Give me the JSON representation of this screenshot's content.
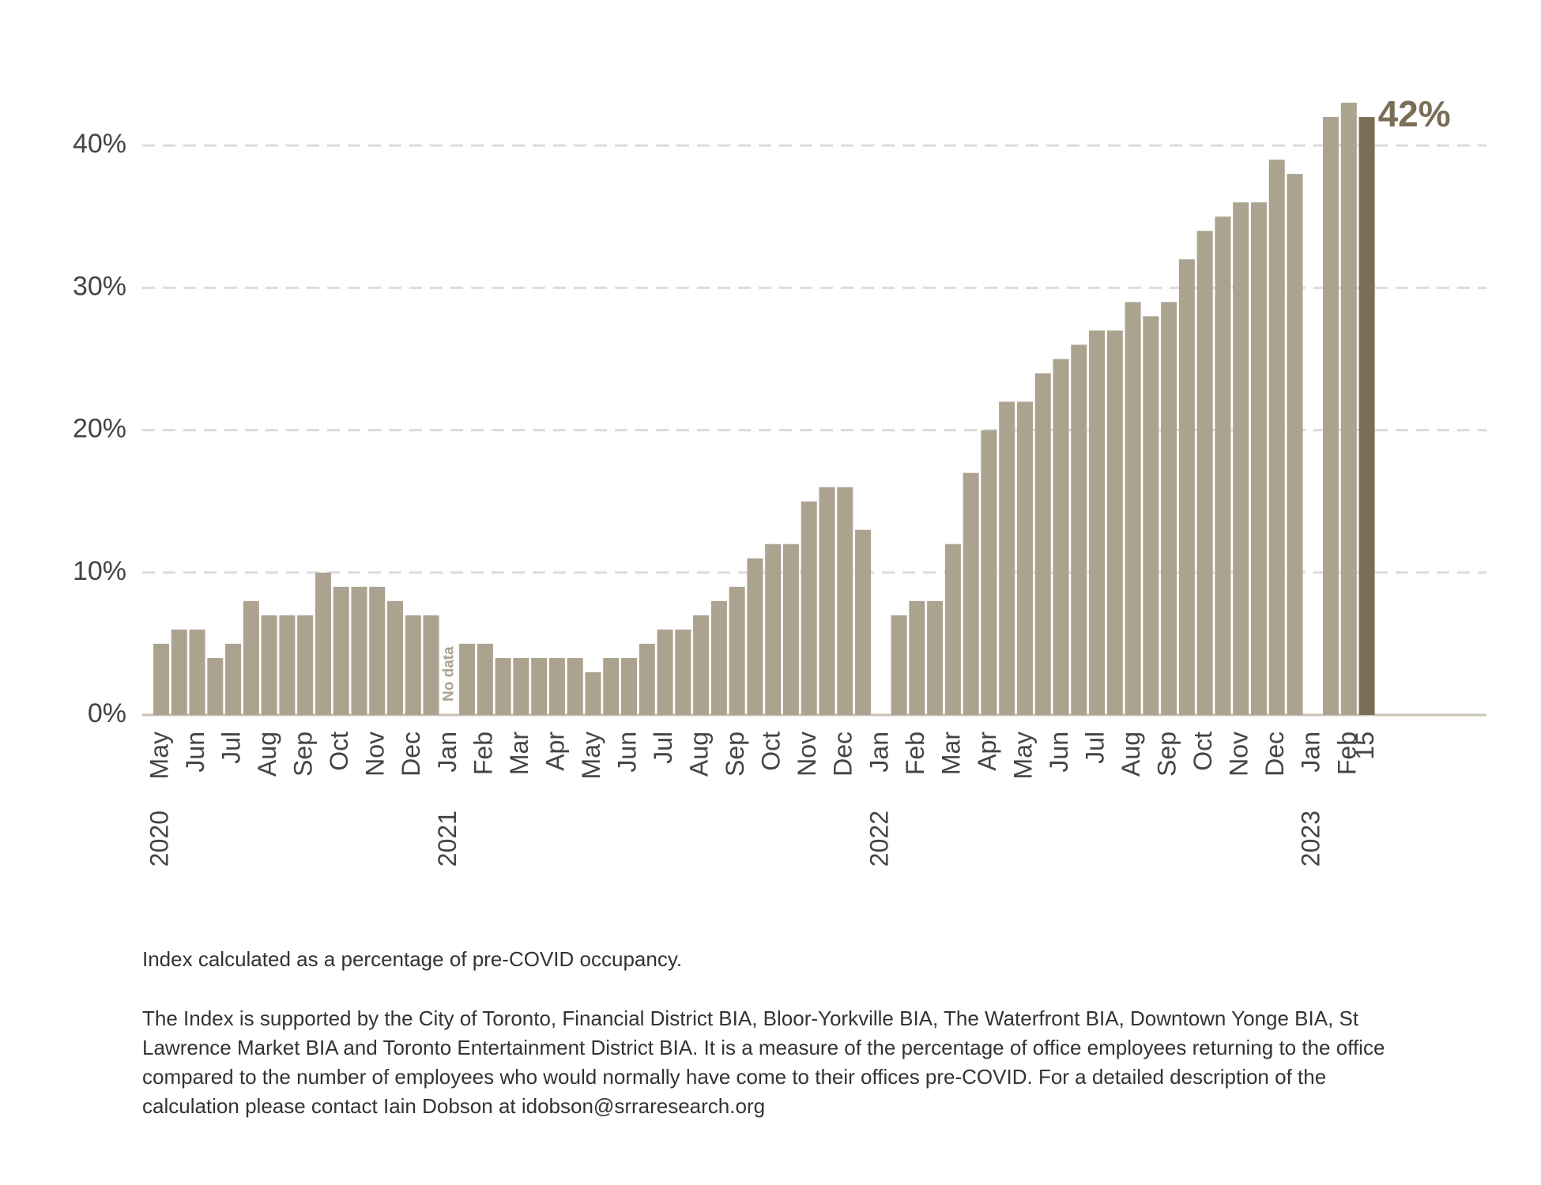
{
  "chart_data": {
    "type": "bar",
    "categories": [
      "May",
      null,
      "Jun",
      null,
      "Jul",
      null,
      "Aug",
      null,
      "Sep",
      null,
      "Oct",
      null,
      "Nov",
      null,
      "Dec",
      null,
      "Jan",
      null,
      "Feb",
      null,
      "Mar",
      null,
      "Apr",
      null,
      "May",
      null,
      "Jun",
      null,
      "Jul",
      null,
      "Aug",
      null,
      "Sep",
      null,
      "Oct",
      null,
      "Nov",
      null,
      "Dec",
      null,
      "Jan",
      null,
      "Feb",
      null,
      "Mar",
      null,
      "Apr",
      null,
      "May",
      null,
      "Jun",
      null,
      "Jul",
      null,
      "Aug",
      null,
      "Sep",
      null,
      "Oct",
      null,
      "Nov",
      null,
      "Dec",
      null,
      "Jan",
      null,
      "Feb",
      "15"
    ],
    "years": [
      "2020",
      null,
      null,
      null,
      null,
      null,
      null,
      null,
      null,
      null,
      null,
      null,
      null,
      null,
      null,
      null,
      "2021",
      null,
      null,
      null,
      null,
      null,
      null,
      null,
      null,
      null,
      null,
      null,
      null,
      null,
      null,
      null,
      null,
      null,
      null,
      null,
      null,
      null,
      null,
      null,
      "2022",
      null,
      null,
      null,
      null,
      null,
      null,
      null,
      null,
      null,
      null,
      null,
      null,
      null,
      null,
      null,
      null,
      null,
      null,
      null,
      null,
      null,
      null,
      null,
      "2023",
      null,
      null,
      null
    ],
    "values": [
      5,
      6,
      6,
      4,
      5,
      8,
      7,
      7,
      7,
      10,
      9,
      9,
      9,
      8,
      7,
      7,
      null,
      5,
      5,
      4,
      4,
      4,
      4,
      4,
      3,
      4,
      4,
      5,
      6,
      6,
      7,
      8,
      9,
      11,
      12,
      12,
      15,
      16,
      16,
      13,
      null,
      7,
      8,
      8,
      12,
      17,
      20,
      22,
      22,
      24,
      25,
      26,
      27,
      27,
      29,
      28,
      29,
      32,
      34,
      35,
      36,
      36,
      39,
      38,
      null,
      42,
      43,
      42
    ],
    "value_labels": [
      null,
      null,
      null,
      null,
      null,
      null,
      null,
      null,
      null,
      null,
      null,
      null,
      null,
      null,
      null,
      null,
      null,
      null,
      null,
      null,
      null,
      null,
      null,
      null,
      null,
      null,
      null,
      null,
      null,
      null,
      null,
      null,
      null,
      null,
      null,
      null,
      null,
      null,
      null,
      null,
      null,
      null,
      null,
      null,
      null,
      null,
      null,
      null,
      null,
      null,
      null,
      null,
      null,
      null,
      null,
      null,
      null,
      null,
      null,
      null,
      null,
      null,
      null,
      null,
      null,
      null,
      null,
      "42%"
    ],
    "annotations": [
      {
        "index": 16,
        "text": "No data"
      }
    ],
    "color": "#aba290",
    "highlight_color": "#7a6e58",
    "highlight_index": 67,
    "ylim": [
      0,
      45
    ],
    "yticks": [
      {
        "value": 0,
        "label": "0%"
      },
      {
        "value": 10,
        "label": "10%"
      },
      {
        "value": 20,
        "label": "20%"
      },
      {
        "value": 30,
        "label": "30%"
      },
      {
        "value": 40,
        "label": "40%"
      }
    ],
    "grid": true
  },
  "notes": [
    "Index calculated as a percentage of pre-COVID occupancy.",
    "The Index is supported by the City of Toronto, Financial District BIA, Bloor-Yorkville BIA, The Waterfront BIA, Downtown Yonge BIA, St Lawrence Market BIA and Toronto Entertainment District BIA. It is a measure of the percentage of office employees returning to the office compared to the number of employees who would normally have come to their offices pre-COVID. For a detailed description of the calculation please contact Iain Dobson at idobson@srraresearch.org"
  ]
}
